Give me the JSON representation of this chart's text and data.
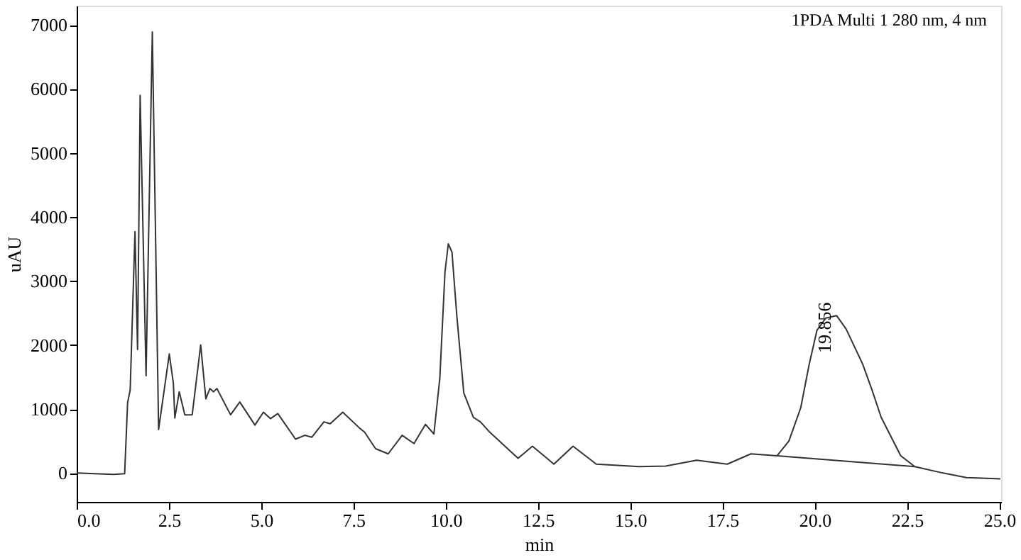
{
  "chart_data": {
    "type": "line",
    "xlabel": "min",
    "ylabel": "uAU",
    "xlim": [
      0,
      25.05
    ],
    "ylim": [
      -450,
      7300
    ],
    "xticks": [
      {
        "value": 0,
        "label": "0.0"
      },
      {
        "value": 2.5,
        "label": "2.5"
      },
      {
        "value": 5,
        "label": "5.0"
      },
      {
        "value": 7.5,
        "label": "7.5"
      },
      {
        "value": 10,
        "label": "10.0"
      },
      {
        "value": 12.5,
        "label": "12.5"
      },
      {
        "value": 15,
        "label": "15.0"
      },
      {
        "value": 17.5,
        "label": "17.5"
      },
      {
        "value": 20,
        "label": "20.0"
      },
      {
        "value": 22.5,
        "label": "22.5"
      },
      {
        "value": 25,
        "label": "25.0"
      }
    ],
    "yticks": [
      0,
      1000,
      2000,
      3000,
      4000,
      5000,
      6000,
      7000
    ],
    "grid": false,
    "line_style": "solid",
    "marker": "none",
    "series": [
      {
        "color": "#333333",
        "x": [
          0,
          1.0,
          1.3,
          1.38,
          1.45,
          1.58,
          1.65,
          1.72,
          1.88,
          2.05,
          2.22,
          2.51,
          2.62,
          2.66,
          2.78,
          2.93,
          3.13,
          3.36,
          3.5,
          3.61,
          3.71,
          3.8,
          4.17,
          4.42,
          4.83,
          5.06,
          5.25,
          5.45,
          5.93,
          6.18,
          6.37,
          6.7,
          6.87,
          7.21,
          7.67,
          7.8,
          8.1,
          8.44,
          8.82,
          9.14,
          9.45,
          9.68,
          9.84,
          9.98,
          10.07,
          10.17,
          10.3,
          10.49,
          10.75,
          10.94,
          11.19,
          11.96,
          12.35,
          12.93,
          13.45,
          14.08,
          15.24,
          15.96,
          16.8,
          17.63,
          18.27,
          18.98,
          19.3,
          19.62,
          19.85,
          20.06,
          20.3,
          20.59,
          20.85,
          21.3,
          21.55,
          21.8,
          22.33,
          22.71,
          23.48,
          24.11,
          25.03
        ],
        "values": [
          0,
          -20,
          -10,
          1100,
          1300,
          3770,
          1930,
          5900,
          1520,
          6890,
          680,
          1860,
          1400,
          860,
          1270,
          910,
          910,
          2000,
          1160,
          1320,
          1270,
          1320,
          910,
          1110,
          750,
          950,
          850,
          930,
          530,
          590,
          560,
          800,
          770,
          950,
          700,
          640,
          380,
          300,
          590,
          460,
          760,
          610,
          1480,
          3140,
          3580,
          3450,
          2460,
          1250,
          870,
          800,
          640,
          230,
          420,
          140,
          420,
          140,
          100,
          110,
          200,
          140,
          300,
          270,
          500,
          1020,
          1700,
          2230,
          2420,
          2460,
          2250,
          1700,
          1300,
          870,
          270,
          100,
          0,
          -70,
          -90
        ]
      },
      {
        "color": "#333333",
        "x": [
          18.98,
          22.71
        ],
        "values": [
          270,
          100
        ]
      }
    ],
    "annotations": [
      "1PDA Multi 1 280 nm, 4 nm",
      "19.856"
    ]
  }
}
